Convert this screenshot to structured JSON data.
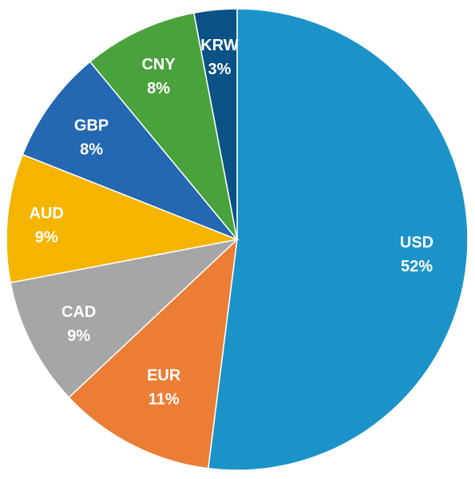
{
  "chart_data": {
    "type": "pie",
    "title": "",
    "start": "top",
    "direction": "clockwise",
    "slices": [
      {
        "label": "USD",
        "value": 52,
        "value_label": "52%",
        "color": "#1B93C8"
      },
      {
        "label": "EUR",
        "value": 11,
        "value_label": "11%",
        "color": "#EB7D35"
      },
      {
        "label": "CAD",
        "value": 9,
        "value_label": "9%",
        "color": "#A6A6A6"
      },
      {
        "label": "AUD",
        "value": 9,
        "value_label": "9%",
        "color": "#F5B400"
      },
      {
        "label": "GBP",
        "value": 8,
        "value_label": "8%",
        "color": "#2468B2"
      },
      {
        "label": "CNY",
        "value": 8,
        "value_label": "8%",
        "color": "#4AA23C"
      },
      {
        "label": "KRW",
        "value": 3,
        "value_label": "3%",
        "color": "#0B5286"
      }
    ]
  }
}
